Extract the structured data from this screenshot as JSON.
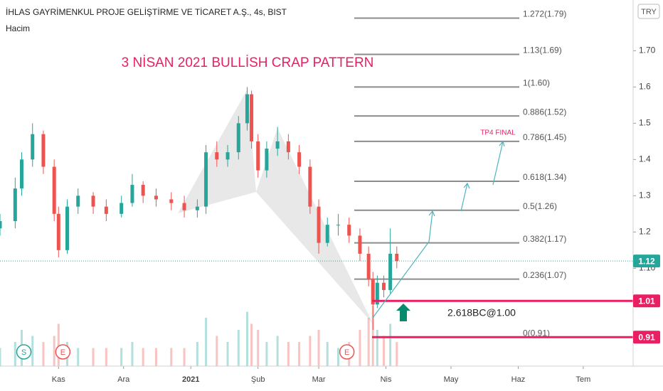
{
  "chart_data": {
    "type": "candlestick",
    "title": "İHLAS GAYRİMENKUL PROJE GELİŞTİRME VE TİCARET A.Ş., 4s, BIST",
    "subtitle": "Hacim",
    "headline": "3 NİSAN 2021 BULLİSH CRAP PATTERN",
    "currency": "TRY",
    "note": "2.618BC@1.00",
    "target_label": "TP4 FINAL",
    "event_markers": [
      {
        "label": "S",
        "x": -16
      },
      {
        "label": "E",
        "x": 2
      },
      {
        "label": "E",
        "x": 133
      }
    ],
    "up_color": "#26a69a",
    "down_color": "#ef5350",
    "x": [
      -27,
      -20,
      -17,
      -12,
      -7,
      -2,
      0,
      4,
      9,
      16,
      22,
      29,
      34,
      39,
      45,
      52,
      58,
      64,
      68,
      73,
      78,
      83,
      87,
      89,
      92,
      96,
      101,
      106,
      111,
      116,
      120,
      124,
      129,
      134,
      139,
      143,
      145,
      147,
      150,
      153,
      156
    ],
    "open": [
      1.21,
      1.23,
      1.32,
      1.4,
      1.47,
      1.38,
      1.25,
      1.15,
      1.27,
      1.3,
      1.27,
      1.25,
      1.28,
      1.33,
      1.3,
      1.29,
      1.28,
      1.26,
      1.27,
      1.42,
      1.4,
      1.42,
      1.5,
      1.58,
      1.45,
      1.37,
      1.43,
      1.45,
      1.42,
      1.38,
      1.27,
      1.17,
      1.22,
      1.22,
      1.19,
      1.14,
      1.07,
      1.0,
      1.06,
      1.04,
      1.14
    ],
    "high": [
      1.25,
      1.35,
      1.42,
      1.5,
      1.48,
      1.4,
      1.27,
      1.29,
      1.32,
      1.31,
      1.29,
      1.3,
      1.36,
      1.34,
      1.32,
      1.31,
      1.3,
      1.29,
      1.44,
      1.45,
      1.44,
      1.52,
      1.6,
      1.59,
      1.47,
      1.45,
      1.49,
      1.47,
      1.44,
      1.4,
      1.29,
      1.24,
      1.25,
      1.24,
      1.21,
      1.16,
      1.09,
      1.08,
      1.08,
      1.21,
      1.16
    ],
    "low": [
      1.19,
      1.21,
      1.3,
      1.38,
      1.36,
      1.23,
      1.13,
      1.14,
      1.25,
      1.25,
      1.23,
      1.24,
      1.27,
      1.28,
      1.27,
      1.26,
      1.24,
      1.24,
      1.25,
      1.38,
      1.38,
      1.4,
      1.48,
      1.43,
      1.35,
      1.35,
      1.41,
      1.4,
      1.36,
      1.25,
      1.14,
      1.16,
      1.19,
      1.17,
      1.12,
      1.05,
      0.93,
      0.99,
      1.02,
      1.03,
      1.1
    ],
    "close": [
      1.23,
      1.32,
      1.4,
      1.47,
      1.38,
      1.25,
      1.15,
      1.27,
      1.3,
      1.27,
      1.25,
      1.28,
      1.33,
      1.3,
      1.29,
      1.28,
      1.26,
      1.27,
      1.42,
      1.4,
      1.42,
      1.5,
      1.58,
      1.45,
      1.37,
      1.43,
      1.45,
      1.42,
      1.38,
      1.27,
      1.17,
      1.22,
      1.22,
      1.19,
      1.14,
      1.07,
      1.0,
      1.06,
      1.04,
      1.14,
      1.12
    ],
    "volume": [
      3,
      4,
      6,
      5,
      4,
      5,
      7,
      4,
      3,
      3,
      3,
      3,
      4,
      3,
      3,
      3,
      3,
      4,
      8,
      5,
      4,
      6,
      9,
      7,
      6,
      4,
      5,
      4,
      4,
      5,
      6,
      4,
      3,
      4,
      6,
      8,
      10,
      6,
      5,
      7,
      4
    ],
    "xlim": [
      -27,
      265
    ],
    "xticks": [
      {
        "value": 0,
        "label": "Kas"
      },
      {
        "value": 30,
        "label": "Ara"
      },
      {
        "value": 61,
        "label": "2021"
      },
      {
        "value": 92,
        "label": "Şub"
      },
      {
        "value": 120,
        "label": "Mar"
      },
      {
        "value": 151,
        "label": "Nis"
      },
      {
        "value": 181,
        "label": "May"
      },
      {
        "value": 212,
        "label": "Haz"
      },
      {
        "value": 242,
        "label": "Tem"
      }
    ],
    "ylim": [
      0.83,
      1.84
    ],
    "yticks": [
      {
        "value": 1.1,
        "label": "1.10"
      },
      1.2,
      1.3,
      1.4,
      1.5,
      1.6,
      {
        "value": 1.7,
        "label": "1.70"
      }
    ],
    "fib_levels": [
      {
        "price": 1.79,
        "label": "1.272(1.79)"
      },
      {
        "price": 1.69,
        "label": "1.13(1.69)"
      },
      {
        "price": 1.6,
        "label": "1(1.60)"
      },
      {
        "price": 1.52,
        "label": "0.886(1.52)"
      },
      {
        "price": 1.45,
        "label": "0.786(1.45)"
      },
      {
        "price": 1.34,
        "label": "0.618(1.34)"
      },
      {
        "price": 1.26,
        "label": "0.5(1.26)"
      },
      {
        "price": 1.17,
        "label": "0.382(1.17)"
      },
      {
        "price": 1.07,
        "label": "0.236(1.07)"
      },
      {
        "price": 0.91,
        "label": "0(0.91)"
      }
    ],
    "price_tags": [
      {
        "price": 1.12,
        "color": "#26a69a"
      },
      {
        "price": 1.01,
        "color": "#e91e63"
      },
      {
        "price": 0.91,
        "color": "#e91e63"
      }
    ]
  }
}
